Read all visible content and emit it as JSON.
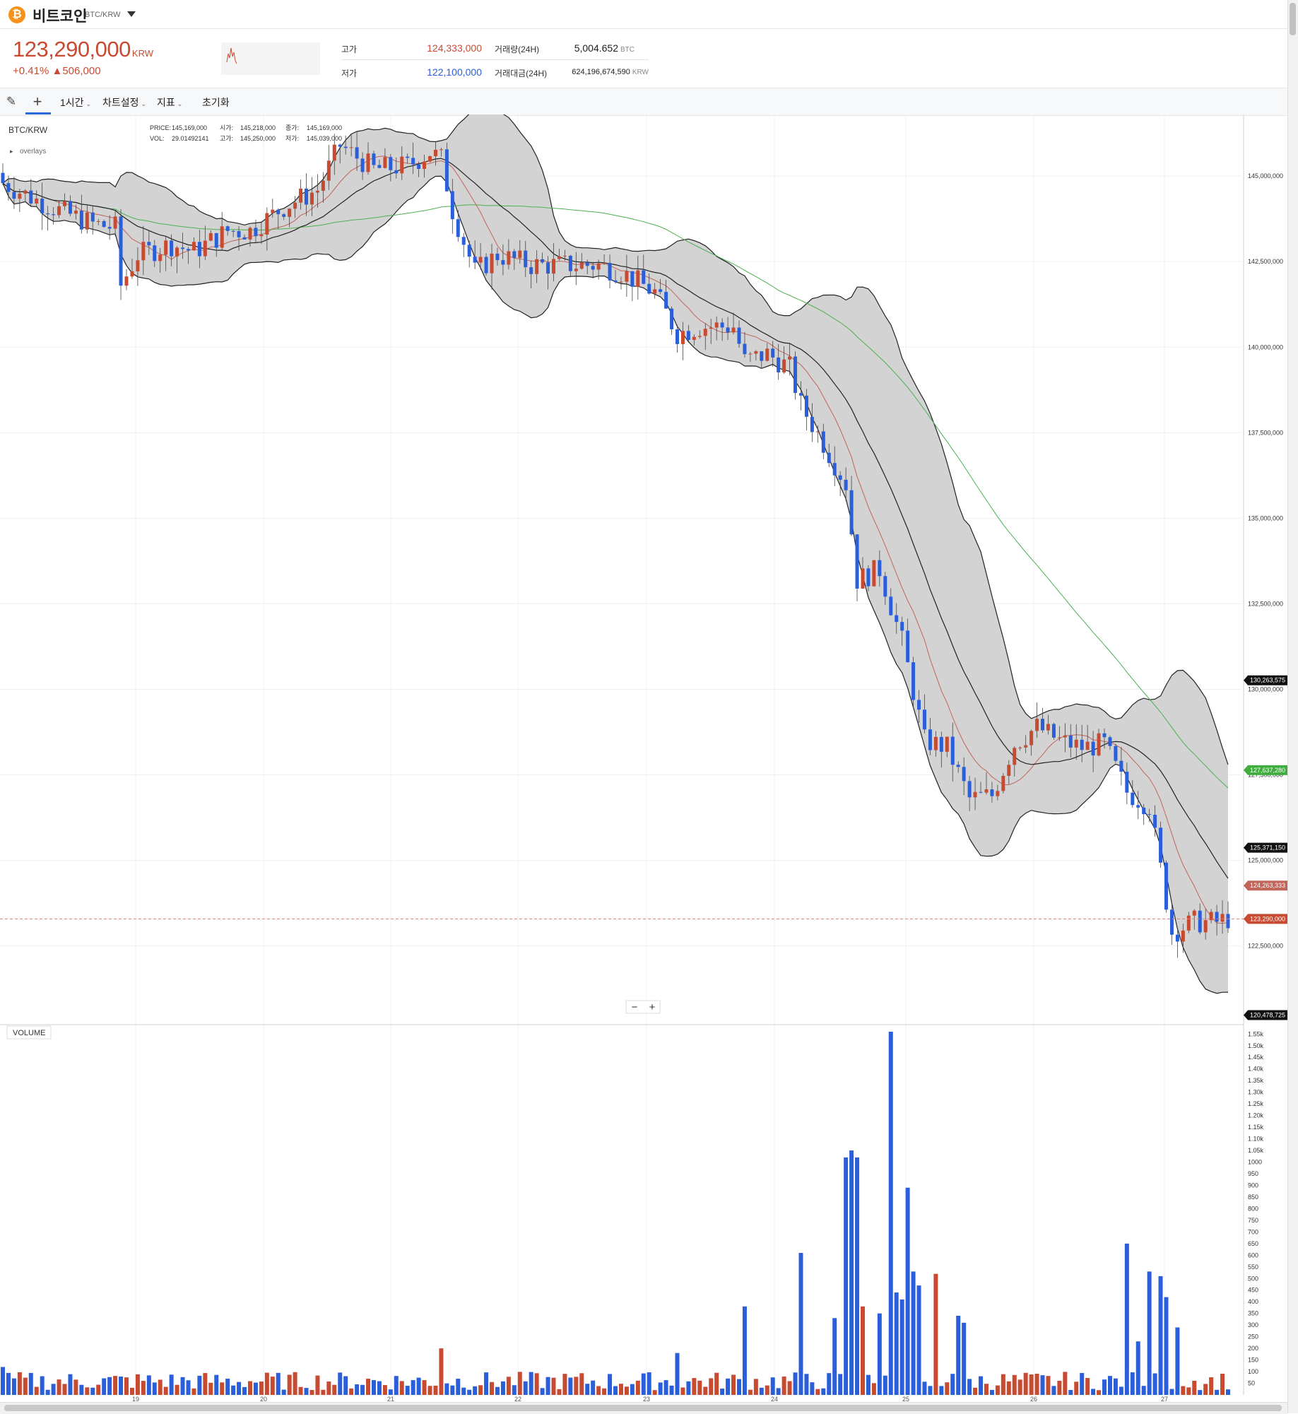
{
  "header": {
    "coin_symbol": "₿",
    "coin_name": "비트코인",
    "pair": "BTC/KRW",
    "price": "123,290,000",
    "price_unit": "KRW",
    "change_rate": "+0.41%",
    "change_amount": "▲506,000",
    "stats": {
      "high_label": "고가",
      "high_value": "124,333,000",
      "low_label": "저가",
      "low_value": "122,100,000",
      "volume_label": "거래량(24H)",
      "volume_value": "5,004.652",
      "volume_unit": "BTC",
      "amount_label": "거래대금(24H)",
      "amount_value": "624,196,674,590",
      "amount_unit": "KRW"
    }
  },
  "toolbar": {
    "interval_label": "1시간",
    "settings_label": "차트설정",
    "indicator_label": "지표",
    "reset_label": "초기화"
  },
  "legend": {
    "symbol": "BTC/KRW",
    "price_label": "PRICE:",
    "price_value": "145,169,000",
    "open_label": "시가:",
    "open_value": "145,218,000",
    "close_label": "종가:",
    "close_value": "145,169,000",
    "vol_label": "VOL:",
    "vol_value": "29.01492141",
    "high_label": "고가:",
    "high_value": "145,250,000",
    "low_label": "저가:",
    "low_value": "145,039,000",
    "overlays_label": "overlays"
  },
  "volume_label": "VOLUME",
  "zoom": {
    "minus": "−",
    "plus": "+"
  },
  "colors": {
    "up": "#c84a31",
    "down": "#2b5fd9",
    "ma_long": "#4caf50",
    "ma_mid": "#c0655a",
    "band_fill": "#d3d3d3"
  },
  "chart_data": {
    "type": "candlestick",
    "interval": "1시간",
    "price_axis": {
      "min": 120200000,
      "max": 146800000,
      "ticks": [
        "145,000,000",
        "142,500,000",
        "140,000,000",
        "137,500,000",
        "135,000,000",
        "132,500,000",
        "130,000,000",
        "127,500,000",
        "125,000,000",
        "122,500,000"
      ]
    },
    "price_tags": [
      {
        "value": 130263575,
        "label": "130,263,575",
        "kind": "upper-band"
      },
      {
        "value": 127637280,
        "label": "127,637,280",
        "kind": "ma-long"
      },
      {
        "value": 125371150,
        "label": "125,371,150",
        "kind": "ma-mid"
      },
      {
        "value": 124263333,
        "label": "124,263,333",
        "kind": "ma-short"
      },
      {
        "value": 123290000,
        "label": "123,290,000",
        "kind": "current-price"
      },
      {
        "value": 120478725,
        "label": "120,478,725",
        "kind": "lower-band"
      }
    ],
    "x_tick_labels": [
      "19",
      "20",
      "21",
      "22",
      "23",
      "24",
      "25",
      "26",
      "27"
    ],
    "volume_axis": {
      "min": 0,
      "max": 1560,
      "ticks": [
        "1.55k",
        "1.50k",
        "1.45k",
        "1.40k",
        "1.35k",
        "1.30k",
        "1.25k",
        "1.20k",
        "1.15k",
        "1.10k",
        "1.05k",
        "1000",
        "950",
        "900",
        "850",
        "800",
        "750",
        "700",
        "650",
        "600",
        "550",
        "500",
        "450",
        "400",
        "350",
        "300",
        "250",
        "200",
        "150",
        "100",
        "50"
      ]
    },
    "close_path_millions": [
      [
        0,
        144.8
      ],
      [
        6,
        144.3
      ],
      [
        10,
        144.0
      ],
      [
        16,
        143.6
      ],
      [
        20,
        143.5
      ],
      [
        21,
        141.8
      ],
      [
        24,
        142.7
      ],
      [
        30,
        143.0
      ],
      [
        34,
        142.8
      ],
      [
        40,
        143.4
      ],
      [
        44,
        143.4
      ],
      [
        50,
        144.1
      ],
      [
        56,
        144.6
      ],
      [
        60,
        145.9
      ],
      [
        66,
        145.2
      ],
      [
        72,
        145.3
      ],
      [
        76,
        145.7
      ],
      [
        78,
        145.5
      ],
      [
        80,
        144.0
      ],
      [
        84,
        142.2
      ],
      [
        88,
        142.7
      ],
      [
        94,
        142.4
      ],
      [
        100,
        142.4
      ],
      [
        106,
        142.4
      ],
      [
        110,
        142.2
      ],
      [
        116,
        141.6
      ],
      [
        120,
        140.4
      ],
      [
        124,
        140.6
      ],
      [
        130,
        140.6
      ],
      [
        132,
        139.6
      ],
      [
        136,
        139.8
      ],
      [
        140,
        139.4
      ],
      [
        142,
        138.3
      ],
      [
        146,
        137.2
      ],
      [
        150,
        136.0
      ],
      [
        152,
        133.2
      ],
      [
        156,
        133.5
      ],
      [
        160,
        131.4
      ],
      [
        164,
        128.5
      ],
      [
        168,
        128.3
      ],
      [
        172,
        126.8
      ],
      [
        176,
        126.9
      ],
      [
        180,
        128.4
      ],
      [
        184,
        128.9
      ],
      [
        188,
        128.5
      ],
      [
        192,
        128.3
      ],
      [
        196,
        128.4
      ],
      [
        200,
        127.0
      ],
      [
        204,
        126.6
      ],
      [
        208,
        122.9
      ],
      [
        212,
        123.2
      ],
      [
        216,
        123.2
      ],
      [
        218,
        123.3
      ]
    ],
    "volume_spikes": [
      {
        "i": 0,
        "v": 120
      },
      {
        "i": 78,
        "v": 200
      },
      {
        "i": 120,
        "v": 180
      },
      {
        "i": 132,
        "v": 380
      },
      {
        "i": 142,
        "v": 610
      },
      {
        "i": 148,
        "v": 330
      },
      {
        "i": 150,
        "v": 1020
      },
      {
        "i": 151,
        "v": 1050
      },
      {
        "i": 152,
        "v": 1020
      },
      {
        "i": 153,
        "v": 380
      },
      {
        "i": 156,
        "v": 350
      },
      {
        "i": 158,
        "v": 1560
      },
      {
        "i": 159,
        "v": 440
      },
      {
        "i": 160,
        "v": 410
      },
      {
        "i": 161,
        "v": 890
      },
      {
        "i": 162,
        "v": 530
      },
      {
        "i": 163,
        "v": 470
      },
      {
        "i": 166,
        "v": 520
      },
      {
        "i": 170,
        "v": 340
      },
      {
        "i": 171,
        "v": 310
      },
      {
        "i": 200,
        "v": 650
      },
      {
        "i": 202,
        "v": 230
      },
      {
        "i": 204,
        "v": 530
      },
      {
        "i": 206,
        "v": 510
      },
      {
        "i": 207,
        "v": 420
      },
      {
        "i": 209,
        "v": 290
      }
    ],
    "bar_count": 219
  }
}
